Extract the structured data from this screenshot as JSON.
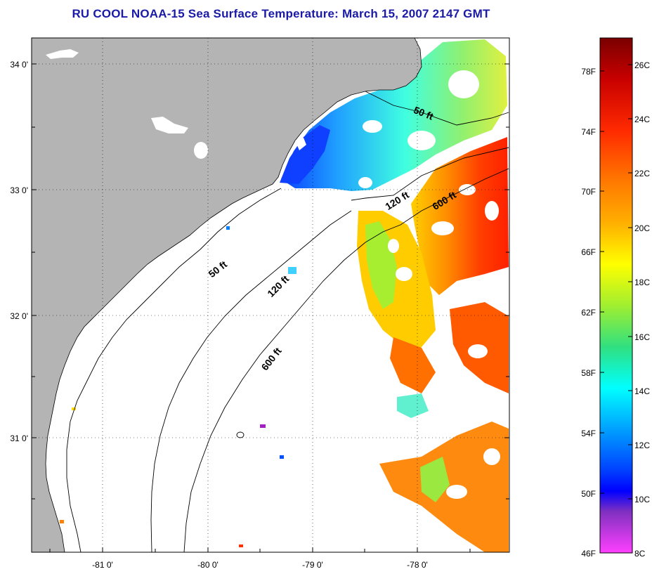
{
  "title": "RU COOL  NOAA-15  Sea Surface Temperature:  March 15, 2007 2147 GMT",
  "map": {
    "lat_ticks": [
      "34 0'",
      "33 0'",
      "32 0'",
      "31 0'"
    ],
    "lon_ticks": [
      "-81 0'",
      "-80 0'",
      "-79 0'",
      "-78 0'"
    ],
    "contours": {
      "c50_north": "50 ft",
      "c120_north": "120 ft",
      "c600_north": "600 ft",
      "c50_south": "50 ft",
      "c120_south": "120 ft",
      "c600_south": "600 ft"
    },
    "colors": {
      "land": "#b4b4b4",
      "no_data": "#ffffff",
      "contour_line": "#000000"
    }
  },
  "colorbar": {
    "fahrenheit_labels": [
      "78F",
      "74F",
      "70F",
      "66F",
      "62F",
      "58F",
      "54F",
      "50F",
      "46F"
    ],
    "celsius_labels": [
      "26C",
      "24C",
      "22C",
      "20C",
      "18C",
      "16C",
      "14C",
      "12C",
      "10C",
      "8C"
    ],
    "gradient_top_to_bottom": [
      "#7a0000",
      "#c80000",
      "#ff2a00",
      "#ff7a00",
      "#ffb000",
      "#ffff00",
      "#a0ee30",
      "#30e080",
      "#00ffff",
      "#00a0ff",
      "#0040ff",
      "#0000ff",
      "#8030c0",
      "#ff40ff"
    ]
  }
}
